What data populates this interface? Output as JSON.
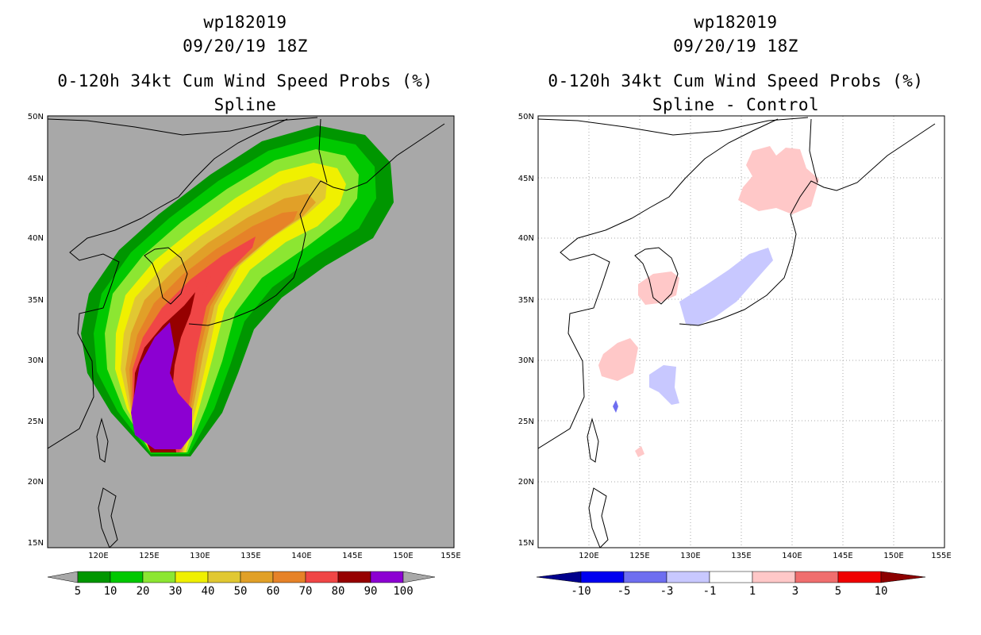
{
  "left": {
    "storm_id": "wp182019",
    "datetime": "09/20/19 18Z",
    "product": "0-120h 34kt Cum Wind Speed Probs (%)",
    "subtitle": "Spline"
  },
  "right": {
    "storm_id": "wp182019",
    "datetime": "09/20/19 18Z",
    "product": "0-120h 34kt Cum Wind Speed Probs (%)",
    "subtitle": "Spline - Control"
  },
  "axes": {
    "lon_labels": [
      "120E",
      "125E",
      "130E",
      "135E",
      "140E",
      "145E",
      "150E",
      "155E"
    ],
    "lat_labels": [
      "50N",
      "45N",
      "40N",
      "35N",
      "30N",
      "25N",
      "20N",
      "15N"
    ]
  },
  "legend_left": {
    "ticks": [
      "5",
      "10",
      "20",
      "30",
      "40",
      "50",
      "60",
      "70",
      "80",
      "90",
      "100"
    ],
    "colors": [
      "#009600",
      "#00c800",
      "#8ce632",
      "#f0f000",
      "#e1c832",
      "#e1a028",
      "#e68228",
      "#f04646",
      "#960000",
      "#8c00d2"
    ],
    "extend_color": "#a8a8a8"
  },
  "legend_right": {
    "ticks": [
      "-10",
      "-5",
      "-3",
      "-1",
      "1",
      "3",
      "5",
      "10"
    ],
    "colors": [
      "#00008c",
      "#0000f0",
      "#6e6ef0",
      "#c8c8ff",
      "#ffffff",
      "#ffc8c8",
      "#f06e6e",
      "#f00000",
      "#8c0000"
    ]
  }
}
